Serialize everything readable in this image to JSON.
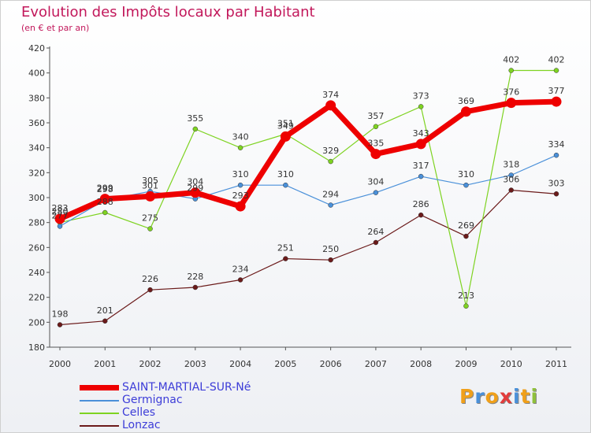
{
  "header": {
    "title": "Evolution des Impôts locaux par Habitant",
    "subtitle": "(en € et par an)"
  },
  "logo": {
    "letters": [
      "P",
      "r",
      "o",
      "x",
      "i",
      "t",
      "i"
    ],
    "colors": [
      "#f0a01a",
      "#4a90d9",
      "#f0a01a",
      "#e23c3c",
      "#4a90d9",
      "#f0a01a",
      "#8fc03c"
    ]
  },
  "chart_data": {
    "type": "line",
    "x": [
      "2000",
      "2001",
      "2002",
      "2003",
      "2004",
      "2005",
      "2006",
      "2007",
      "2008",
      "2009",
      "2010",
      "2011"
    ],
    "ylim": [
      180,
      420
    ],
    "yticks": [
      180,
      200,
      220,
      240,
      260,
      280,
      300,
      320,
      340,
      360,
      380,
      400,
      420
    ],
    "grid": false,
    "legend_position": "bottom-left",
    "series": [
      {
        "name": "Lonzac",
        "color": "#6b1a1a",
        "values": [
          198,
          201,
          226,
          228,
          234,
          251,
          250,
          264,
          286,
          269,
          306,
          303
        ]
      },
      {
        "name": "Celles",
        "color": "#7ed321",
        "values": [
          280,
          288,
          275,
          355,
          340,
          351,
          329,
          357,
          373,
          213,
          402,
          402
        ]
      },
      {
        "name": "Germignac",
        "color": "#4a90d9",
        "values": [
          277,
          298,
          305,
          299,
          310,
          310,
          294,
          304,
          317,
          310,
          318,
          334
        ]
      },
      {
        "name": "SAINT-MARTIAL-SUR-Né",
        "color": "#ee0000",
        "values": [
          283,
          299,
          301,
          304,
          293,
          349,
          374,
          335,
          343,
          369,
          376,
          377
        ]
      }
    ],
    "legend_order": [
      "SAINT-MARTIAL-SUR-Né",
      "Germignac",
      "Celles",
      "Lonzac"
    ]
  }
}
